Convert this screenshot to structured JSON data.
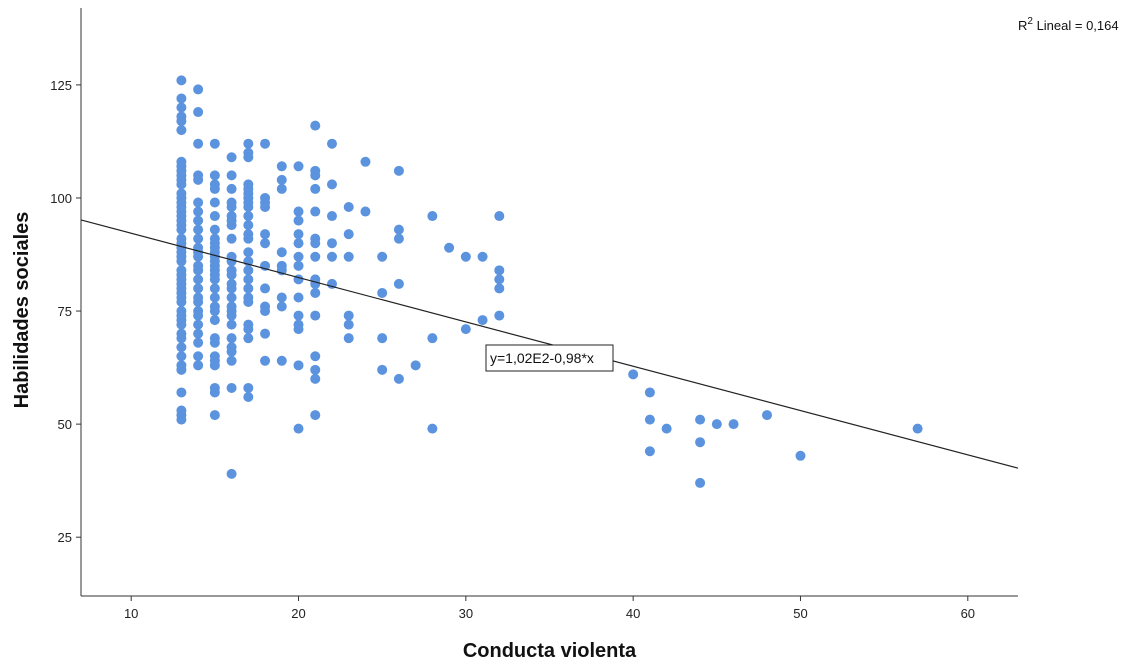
{
  "chart_data": {
    "type": "scatter",
    "xlabel": "Conducta violenta",
    "ylabel": "Habilidades sociales",
    "xlim": [
      7,
      63
    ],
    "ylim": [
      12,
      142
    ],
    "xticks": [
      "10",
      "20",
      "30",
      "40",
      "50",
      "60"
    ],
    "yticks": [
      "25",
      "50",
      "75",
      "100",
      "125"
    ],
    "r2_prefix": "R",
    "r2_sup": "2",
    "r2_suffix": " Lineal = 0,164",
    "equation": "y=1,02E2-0,98*x",
    "fit_line": {
      "intercept": 102,
      "slope": -0.98
    },
    "point_color": "#5b93de",
    "line_color": "#222222",
    "points": [
      [
        13,
        126
      ],
      [
        13,
        122
      ],
      [
        13,
        120
      ],
      [
        13,
        118
      ],
      [
        13,
        117
      ],
      [
        13,
        115
      ],
      [
        13,
        108
      ],
      [
        13,
        107
      ],
      [
        13,
        106
      ],
      [
        13,
        105
      ],
      [
        13,
        104
      ],
      [
        13,
        103
      ],
      [
        13,
        101
      ],
      [
        13,
        100
      ],
      [
        13,
        99
      ],
      [
        13,
        98
      ],
      [
        13,
        97
      ],
      [
        13,
        96
      ],
      [
        13,
        95
      ],
      [
        13,
        94
      ],
      [
        13,
        93
      ],
      [
        13,
        91
      ],
      [
        13,
        90
      ],
      [
        13,
        89
      ],
      [
        13,
        88
      ],
      [
        13,
        87
      ],
      [
        13,
        86
      ],
      [
        13,
        84
      ],
      [
        13,
        83
      ],
      [
        13,
        82
      ],
      [
        13,
        81
      ],
      [
        13,
        80
      ],
      [
        13,
        79
      ],
      [
        13,
        78
      ],
      [
        13,
        77
      ],
      [
        13,
        75
      ],
      [
        13,
        74
      ],
      [
        13,
        73
      ],
      [
        13,
        72
      ],
      [
        13,
        70
      ],
      [
        13,
        69
      ],
      [
        13,
        67
      ],
      [
        13,
        65
      ],
      [
        13,
        63
      ],
      [
        13,
        62
      ],
      [
        13,
        57
      ],
      [
        13,
        53
      ],
      [
        13,
        52
      ],
      [
        13,
        51
      ],
      [
        14,
        124
      ],
      [
        14,
        119
      ],
      [
        14,
        112
      ],
      [
        14,
        105
      ],
      [
        14,
        104
      ],
      [
        14,
        99
      ],
      [
        14,
        97
      ],
      [
        14,
        95
      ],
      [
        14,
        93
      ],
      [
        14,
        91
      ],
      [
        14,
        89
      ],
      [
        14,
        88
      ],
      [
        14,
        87
      ],
      [
        14,
        85
      ],
      [
        14,
        84
      ],
      [
        14,
        82
      ],
      [
        14,
        80
      ],
      [
        14,
        78
      ],
      [
        14,
        77
      ],
      [
        14,
        75
      ],
      [
        14,
        74
      ],
      [
        14,
        72
      ],
      [
        14,
        70
      ],
      [
        14,
        68
      ],
      [
        14,
        65
      ],
      [
        14,
        63
      ],
      [
        15,
        112
      ],
      [
        15,
        105
      ],
      [
        15,
        103
      ],
      [
        15,
        102
      ],
      [
        15,
        99
      ],
      [
        15,
        96
      ],
      [
        15,
        93
      ],
      [
        15,
        91
      ],
      [
        15,
        90
      ],
      [
        15,
        89
      ],
      [
        15,
        88
      ],
      [
        15,
        87
      ],
      [
        15,
        86
      ],
      [
        15,
        85
      ],
      [
        15,
        84
      ],
      [
        15,
        83
      ],
      [
        15,
        82
      ],
      [
        15,
        80
      ],
      [
        15,
        78
      ],
      [
        15,
        76
      ],
      [
        15,
        75
      ],
      [
        15,
        73
      ],
      [
        15,
        69
      ],
      [
        15,
        68
      ],
      [
        15,
        65
      ],
      [
        15,
        64
      ],
      [
        15,
        63
      ],
      [
        15,
        58
      ],
      [
        15,
        57
      ],
      [
        15,
        52
      ],
      [
        16,
        109
      ],
      [
        16,
        105
      ],
      [
        16,
        102
      ],
      [
        16,
        99
      ],
      [
        16,
        98
      ],
      [
        16,
        96
      ],
      [
        16,
        95
      ],
      [
        16,
        94
      ],
      [
        16,
        91
      ],
      [
        16,
        87
      ],
      [
        16,
        86
      ],
      [
        16,
        84
      ],
      [
        16,
        83
      ],
      [
        16,
        81
      ],
      [
        16,
        80
      ],
      [
        16,
        78
      ],
      [
        16,
        76
      ],
      [
        16,
        75
      ],
      [
        16,
        74
      ],
      [
        16,
        72
      ],
      [
        16,
        69
      ],
      [
        16,
        67
      ],
      [
        16,
        66
      ],
      [
        16,
        64
      ],
      [
        16,
        58
      ],
      [
        16,
        39
      ],
      [
        17,
        112
      ],
      [
        17,
        110
      ],
      [
        17,
        109
      ],
      [
        17,
        103
      ],
      [
        17,
        102
      ],
      [
        17,
        101
      ],
      [
        17,
        100
      ],
      [
        17,
        99
      ],
      [
        17,
        98
      ],
      [
        17,
        96
      ],
      [
        17,
        94
      ],
      [
        17,
        92
      ],
      [
        17,
        91
      ],
      [
        17,
        88
      ],
      [
        17,
        86
      ],
      [
        17,
        84
      ],
      [
        17,
        82
      ],
      [
        17,
        80
      ],
      [
        17,
        78
      ],
      [
        17,
        77
      ],
      [
        17,
        72
      ],
      [
        17,
        71
      ],
      [
        17,
        69
      ],
      [
        17,
        58
      ],
      [
        17,
        56
      ],
      [
        18,
        112
      ],
      [
        18,
        100
      ],
      [
        18,
        99
      ],
      [
        18,
        98
      ],
      [
        18,
        92
      ],
      [
        18,
        90
      ],
      [
        18,
        85
      ],
      [
        18,
        80
      ],
      [
        18,
        76
      ],
      [
        18,
        75
      ],
      [
        18,
        70
      ],
      [
        18,
        64
      ],
      [
        19,
        107
      ],
      [
        19,
        104
      ],
      [
        19,
        102
      ],
      [
        19,
        88
      ],
      [
        19,
        85
      ],
      [
        19,
        84
      ],
      [
        19,
        78
      ],
      [
        19,
        76
      ],
      [
        19,
        64
      ],
      [
        20,
        107
      ],
      [
        20,
        97
      ],
      [
        20,
        95
      ],
      [
        20,
        92
      ],
      [
        20,
        90
      ],
      [
        20,
        87
      ],
      [
        20,
        85
      ],
      [
        20,
        82
      ],
      [
        20,
        78
      ],
      [
        20,
        74
      ],
      [
        20,
        72
      ],
      [
        20,
        71
      ],
      [
        20,
        63
      ],
      [
        20,
        49
      ],
      [
        21,
        116
      ],
      [
        21,
        106
      ],
      [
        21,
        105
      ],
      [
        21,
        102
      ],
      [
        21,
        97
      ],
      [
        21,
        91
      ],
      [
        21,
        90
      ],
      [
        21,
        87
      ],
      [
        21,
        82
      ],
      [
        21,
        81
      ],
      [
        21,
        79
      ],
      [
        21,
        74
      ],
      [
        21,
        65
      ],
      [
        21,
        62
      ],
      [
        21,
        60
      ],
      [
        21,
        52
      ],
      [
        22,
        112
      ],
      [
        22,
        103
      ],
      [
        22,
        96
      ],
      [
        22,
        90
      ],
      [
        22,
        87
      ],
      [
        22,
        81
      ],
      [
        23,
        98
      ],
      [
        23,
        92
      ],
      [
        23,
        87
      ],
      [
        23,
        74
      ],
      [
        23,
        72
      ],
      [
        23,
        69
      ],
      [
        24,
        108
      ],
      [
        24,
        97
      ],
      [
        25,
        87
      ],
      [
        25,
        79
      ],
      [
        25,
        69
      ],
      [
        25,
        62
      ],
      [
        26,
        106
      ],
      [
        26,
        93
      ],
      [
        26,
        91
      ],
      [
        26,
        81
      ],
      [
        26,
        60
      ],
      [
        27,
        63
      ],
      [
        28,
        96
      ],
      [
        28,
        69
      ],
      [
        28,
        49
      ],
      [
        29,
        89
      ],
      [
        30,
        87
      ],
      [
        30,
        71
      ],
      [
        31,
        87
      ],
      [
        31,
        73
      ],
      [
        32,
        96
      ],
      [
        32,
        84
      ],
      [
        32,
        82
      ],
      [
        32,
        80
      ],
      [
        32,
        74
      ],
      [
        40,
        61
      ],
      [
        41,
        57
      ],
      [
        41,
        51
      ],
      [
        41,
        44
      ],
      [
        42,
        49
      ],
      [
        44,
        51
      ],
      [
        44,
        46
      ],
      [
        44,
        37
      ],
      [
        45,
        50
      ],
      [
        46,
        50
      ],
      [
        48,
        52
      ],
      [
        50,
        43
      ],
      [
        57,
        49
      ]
    ]
  }
}
